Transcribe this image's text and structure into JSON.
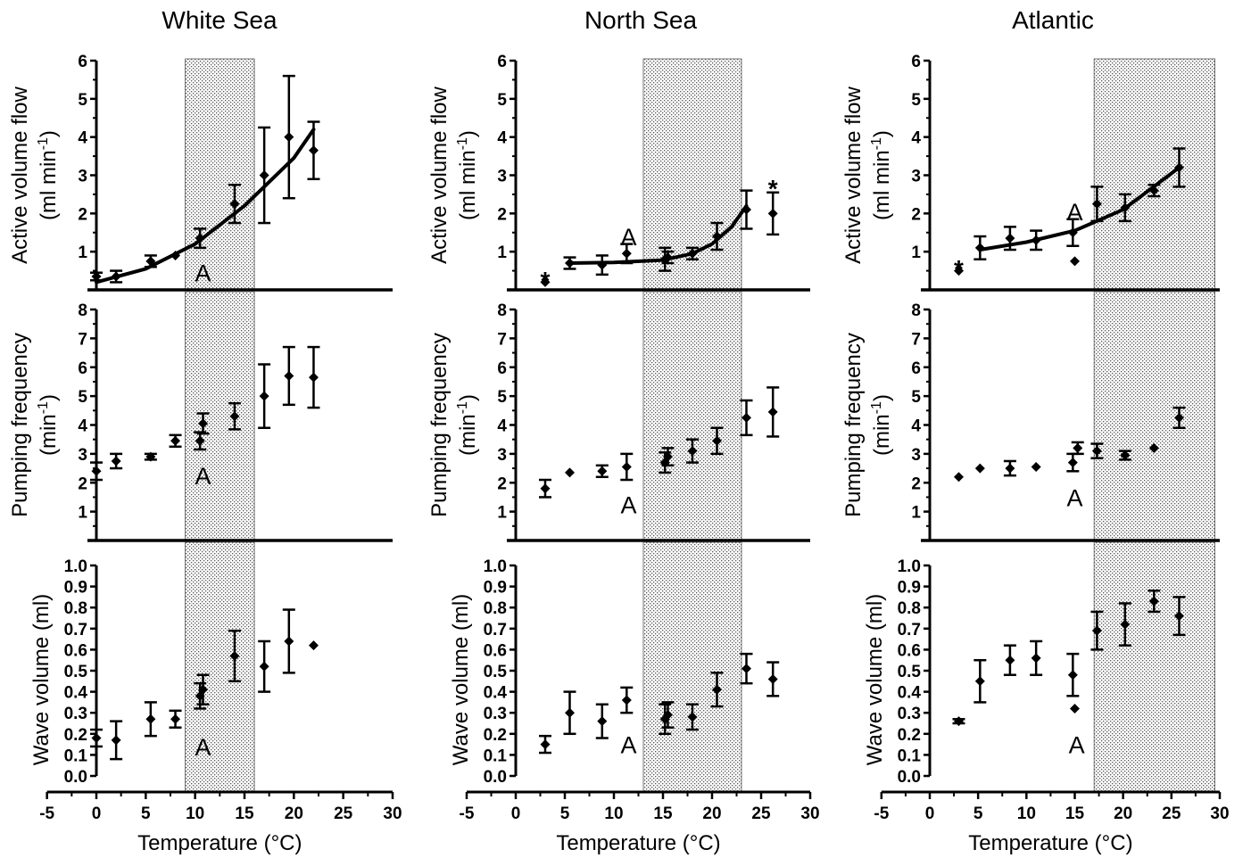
{
  "columns": [
    "White Sea",
    "North Sea",
    "Atlantic"
  ],
  "xlabel": "Temperature (°C)",
  "ylabels": {
    "flow": [
      "Active volume flow",
      "(ml min",
      "-1",
      ")"
    ],
    "freq": [
      "Pumping frequency",
      "(min",
      "-1",
      ")"
    ],
    "wave": [
      "Wave volume (ml)"
    ]
  },
  "chart_data": [
    {
      "type": "scatter",
      "panel": "White Sea / Active volume flow",
      "xlim": [
        -5,
        30
      ],
      "ylim": [
        0,
        6
      ],
      "yticks": [
        "1",
        "2",
        "3",
        "4",
        "5",
        "6"
      ],
      "shaded_range": [
        9,
        16
      ],
      "points": [
        [
          0,
          0.35,
          0.1
        ],
        [
          2,
          0.35,
          0.15
        ],
        [
          5.5,
          0.75,
          0.15
        ],
        [
          8,
          0.9,
          0
        ],
        [
          10.5,
          1.35,
          0.25
        ],
        [
          14,
          2.25,
          0.5
        ],
        [
          17,
          3.0,
          1.25
        ],
        [
          19.5,
          4.0,
          1.6
        ],
        [
          22,
          3.65,
          0.75
        ]
      ],
      "fit": [
        [
          0,
          0.2
        ],
        [
          5,
          0.55
        ],
        [
          10,
          1.2
        ],
        [
          15,
          2.2
        ],
        [
          20,
          3.45
        ],
        [
          22,
          4.2
        ]
      ],
      "annotations": [
        {
          "text": "A",
          "x": 10.8,
          "y": 0.45
        }
      ]
    },
    {
      "type": "scatter",
      "panel": "White Sea / Pumping frequency",
      "xlim": [
        -5,
        30
      ],
      "ylim": [
        0,
        8
      ],
      "yticks": [
        "1",
        "2",
        "3",
        "4",
        "5",
        "6",
        "7",
        "8"
      ],
      "shaded_range": [
        9,
        16
      ],
      "points": [
        [
          0,
          2.4,
          0.3
        ],
        [
          2,
          2.75,
          0.25
        ],
        [
          5.5,
          2.9,
          0.1
        ],
        [
          8,
          3.45,
          0.2
        ],
        [
          10.5,
          3.45,
          0.3
        ],
        [
          10.8,
          4.05,
          0.35
        ],
        [
          14,
          4.3,
          0.45
        ],
        [
          17,
          5.0,
          1.1
        ],
        [
          19.5,
          5.7,
          1.0
        ],
        [
          22,
          5.65,
          1.05
        ]
      ],
      "annotations": [
        {
          "text": "A",
          "x": 10.8,
          "y": 2.25
        }
      ]
    },
    {
      "type": "scatter",
      "panel": "White Sea / Wave volume (ml)",
      "xlim": [
        -5,
        30
      ],
      "ylim": [
        0,
        1
      ],
      "yticks": [
        "0.0",
        "0.1",
        "0.2",
        "0.3",
        "0.4",
        "0.5",
        "0.6",
        "0.7",
        "0.8",
        "0.9",
        "1.0"
      ],
      "shaded_range": [
        9,
        16
      ],
      "points": [
        [
          0,
          0.18,
          0.04
        ],
        [
          2,
          0.17,
          0.09
        ],
        [
          5.5,
          0.27,
          0.08
        ],
        [
          8,
          0.27,
          0.04
        ],
        [
          10.5,
          0.38,
          0.06
        ],
        [
          10.8,
          0.41,
          0.07
        ],
        [
          14,
          0.57,
          0.12
        ],
        [
          17,
          0.52,
          0.12
        ],
        [
          19.5,
          0.64,
          0.15
        ],
        [
          22,
          0.62,
          0
        ]
      ],
      "annotations": [
        {
          "text": "A",
          "x": 10.8,
          "y": 0.14
        }
      ]
    },
    {
      "type": "scatter",
      "panel": "North Sea / Active volume flow",
      "xlim": [
        -5,
        30
      ],
      "ylim": [
        0,
        6
      ],
      "yticks": [
        "1",
        "2",
        "3",
        "4",
        "5",
        "6"
      ],
      "shaded_range": [
        13,
        23
      ],
      "points": [
        [
          3,
          0.2,
          0
        ],
        [
          5.5,
          0.7,
          0.15
        ],
        [
          8.8,
          0.65,
          0.25
        ],
        [
          11.3,
          0.95,
          0.25
        ],
        [
          15.2,
          0.8,
          0.3
        ],
        [
          15.5,
          0.85,
          0.15
        ],
        [
          18,
          0.95,
          0.15
        ],
        [
          20.5,
          1.4,
          0.35
        ],
        [
          23.5,
          2.1,
          0.5
        ],
        [
          26.2,
          2.0,
          0.55
        ]
      ],
      "fit": [
        [
          5.5,
          0.7
        ],
        [
          10,
          0.72
        ],
        [
          15,
          0.78
        ],
        [
          18,
          0.95
        ],
        [
          20,
          1.2
        ],
        [
          22,
          1.65
        ],
        [
          23.5,
          2.2
        ]
      ],
      "annotations": [
        {
          "text": "A",
          "x": 11.5,
          "y": 1.4
        },
        {
          "text": "*",
          "x": 3,
          "y": 0.35,
          "kind": "star"
        },
        {
          "text": "*",
          "x": 26.2,
          "y": 2.75,
          "kind": "star"
        }
      ]
    },
    {
      "type": "scatter",
      "panel": "North Sea / Pumping frequency",
      "xlim": [
        -5,
        30
      ],
      "ylim": [
        0,
        8
      ],
      "yticks": [
        "1",
        "2",
        "3",
        "4",
        "5",
        "6",
        "7",
        "8"
      ],
      "shaded_range": [
        13,
        23
      ],
      "points": [
        [
          3,
          1.8,
          0.3
        ],
        [
          5.5,
          2.35,
          0
        ],
        [
          8.8,
          2.4,
          0.2
        ],
        [
          11.3,
          2.55,
          0.45
        ],
        [
          15.2,
          2.7,
          0.35
        ],
        [
          15.5,
          2.9,
          0.3
        ],
        [
          18,
          3.1,
          0.4
        ],
        [
          20.5,
          3.45,
          0.45
        ],
        [
          23.5,
          4.25,
          0.6
        ],
        [
          26.2,
          4.45,
          0.85
        ]
      ],
      "annotations": [
        {
          "text": "A",
          "x": 11.5,
          "y": 1.25
        }
      ]
    },
    {
      "type": "scatter",
      "panel": "North Sea / Wave volume (ml)",
      "xlim": [
        -5,
        30
      ],
      "ylim": [
        0,
        1
      ],
      "yticks": [
        "0.0",
        "0.1",
        "0.2",
        "0.3",
        "0.4",
        "0.5",
        "0.6",
        "0.7",
        "0.8",
        "0.9",
        "1.0"
      ],
      "shaded_range": [
        13,
        23
      ],
      "points": [
        [
          3,
          0.15,
          0.04
        ],
        [
          5.5,
          0.3,
          0.1
        ],
        [
          8.8,
          0.26,
          0.08
        ],
        [
          11.3,
          0.36,
          0.06
        ],
        [
          15.2,
          0.27,
          0.07
        ],
        [
          15.5,
          0.29,
          0.06
        ],
        [
          18,
          0.28,
          0.06
        ],
        [
          20.5,
          0.41,
          0.08
        ],
        [
          23.5,
          0.51,
          0.07
        ],
        [
          26.2,
          0.46,
          0.08
        ]
      ],
      "annotations": [
        {
          "text": "A",
          "x": 11.5,
          "y": 0.15
        }
      ]
    },
    {
      "type": "scatter",
      "panel": "Atlantic / Active volume flow",
      "xlim": [
        -5,
        30
      ],
      "ylim": [
        0,
        6
      ],
      "yticks": [
        "1",
        "2",
        "3",
        "4",
        "5",
        "6"
      ],
      "shaded_range": [
        17,
        29.5
      ],
      "points": [
        [
          3,
          0.5,
          0
        ],
        [
          5.2,
          1.1,
          0.3
        ],
        [
          8.3,
          1.35,
          0.3
        ],
        [
          11,
          1.3,
          0.25
        ],
        [
          14.8,
          1.5,
          0.35
        ],
        [
          15,
          0.75,
          0
        ],
        [
          17.3,
          2.25,
          0.45
        ],
        [
          20.2,
          2.15,
          0.35
        ],
        [
          23.2,
          2.6,
          0.15
        ],
        [
          25.8,
          3.2,
          0.5
        ]
      ],
      "fit": [
        [
          5.2,
          1.05
        ],
        [
          10,
          1.25
        ],
        [
          15,
          1.55
        ],
        [
          20,
          2.1
        ],
        [
          25.8,
          3.2
        ]
      ],
      "annotations": [
        {
          "text": "A",
          "x": 15,
          "y": 2.05
        },
        {
          "text": "*",
          "x": 3,
          "y": 0.65,
          "kind": "star"
        }
      ]
    },
    {
      "type": "scatter",
      "panel": "Atlantic / Pumping frequency",
      "xlim": [
        -5,
        30
      ],
      "ylim": [
        0,
        8
      ],
      "yticks": [
        "1",
        "2",
        "3",
        "4",
        "5",
        "6",
        "7",
        "8"
      ],
      "shaded_range": [
        17,
        29.5
      ],
      "points": [
        [
          3,
          2.2,
          0
        ],
        [
          5.2,
          2.5,
          0
        ],
        [
          8.3,
          2.5,
          0.25
        ],
        [
          11,
          2.55,
          0
        ],
        [
          14.8,
          2.7,
          0.3
        ],
        [
          15.3,
          3.2,
          0.2
        ],
        [
          17.3,
          3.1,
          0.25
        ],
        [
          20.2,
          2.95,
          0.15
        ],
        [
          23.2,
          3.2,
          0
        ],
        [
          25.8,
          4.25,
          0.35
        ]
      ],
      "annotations": [
        {
          "text": "A",
          "x": 15,
          "y": 1.5
        }
      ]
    },
    {
      "type": "scatter",
      "panel": "Atlantic / Wave volume (ml)",
      "xlim": [
        -5,
        30
      ],
      "ylim": [
        0,
        1
      ],
      "yticks": [
        "0.0",
        "0.1",
        "0.2",
        "0.3",
        "0.4",
        "0.5",
        "0.6",
        "0.7",
        "0.8",
        "0.9",
        "1.0"
      ],
      "shaded_range": [
        17,
        29.5
      ],
      "points": [
        [
          3,
          0.26,
          0.01
        ],
        [
          5.2,
          0.45,
          0.1
        ],
        [
          8.3,
          0.55,
          0.07
        ],
        [
          11,
          0.56,
          0.08
        ],
        [
          14.8,
          0.48,
          0.1
        ],
        [
          15,
          0.32,
          0
        ],
        [
          17.3,
          0.69,
          0.09
        ],
        [
          20.2,
          0.72,
          0.1
        ],
        [
          23.2,
          0.83,
          0.05
        ],
        [
          25.8,
          0.76,
          0.09
        ]
      ],
      "annotations": [
        {
          "text": "A",
          "x": 15.2,
          "y": 0.15
        }
      ]
    }
  ],
  "xticks": [
    "-5",
    "0",
    "5",
    "10",
    "15",
    "20",
    "25",
    "30"
  ]
}
